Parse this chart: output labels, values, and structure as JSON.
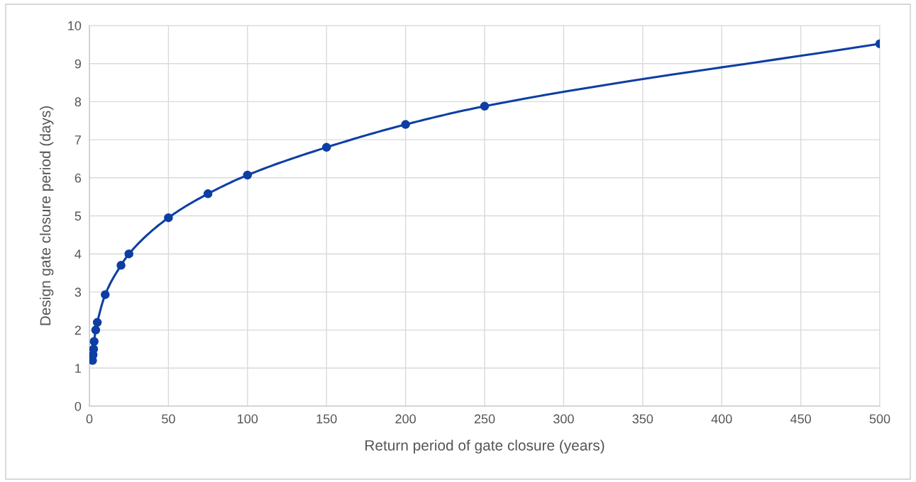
{
  "chart_data": {
    "type": "line",
    "xlabel": "Return period of gate closure (years)",
    "ylabel": "Design gate closure period (days)",
    "series": [
      {
        "color": "#0d3ea3",
        "x": [
          2,
          2.33,
          2.67,
          3,
          4,
          5,
          10,
          20,
          25,
          50,
          75,
          100,
          150,
          200,
          250,
          500
        ],
        "values": [
          1.2,
          1.35,
          1.5,
          1.7,
          2.0,
          2.2,
          2.93,
          3.7,
          4.0,
          4.95,
          5.58,
          6.07,
          6.8,
          7.4,
          7.88,
          9.52
        ]
      }
    ],
    "xlim": [
      0,
      500
    ],
    "xticks": [
      0,
      50,
      100,
      150,
      200,
      250,
      300,
      350,
      400,
      450,
      500
    ],
    "ylim": [
      0,
      10
    ],
    "yticks": [
      0,
      1,
      2,
      3,
      4,
      5,
      6,
      7,
      8,
      9,
      10
    ],
    "grid": true,
    "marker": "circle",
    "line_style": "solid"
  }
}
